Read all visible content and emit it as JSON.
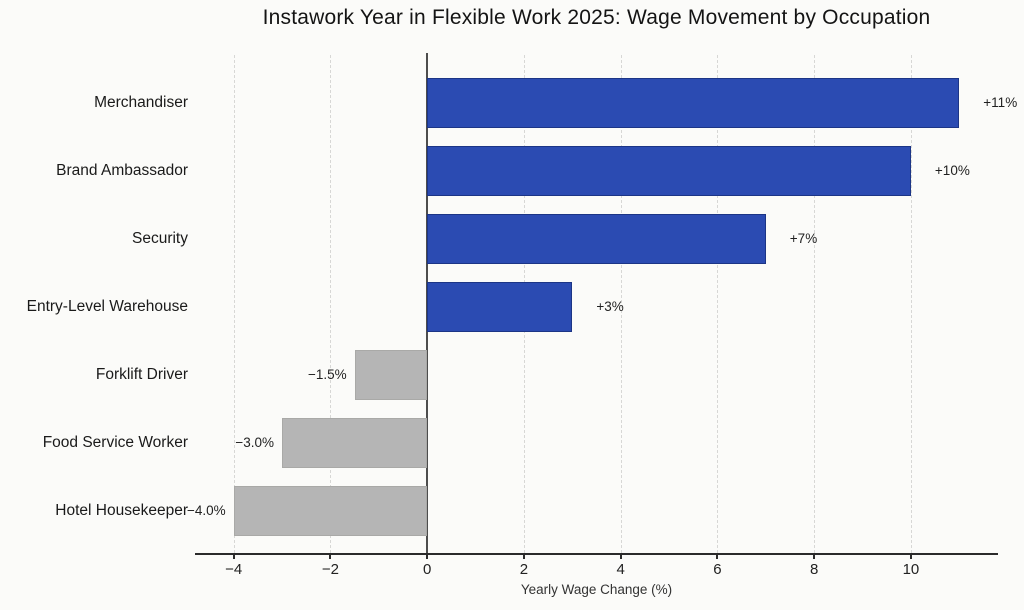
{
  "chart_data": {
    "type": "bar",
    "orientation": "horizontal",
    "title": "Instawork Year in Flexible Work 2025: Wage Movement by Occupation",
    "xlabel": "Yearly Wage Change (%)",
    "categories": [
      "Merchandiser",
      "Brand Ambassador",
      "Security",
      "Entry-Level Warehouse",
      "Forklift Driver",
      "Food Service Worker",
      "Hotel Housekeeper"
    ],
    "values": [
      11,
      10,
      7,
      3,
      -1.5,
      -3,
      -4
    ],
    "bar_labels": [
      "+11%",
      "+10%",
      "+7%",
      "+3%",
      "−1.5%",
      "−3.0%",
      "−4.0%"
    ],
    "xticks": [
      -4,
      -2,
      0,
      2,
      4,
      6,
      8,
      10
    ],
    "xtick_labels": [
      "−4",
      "−2",
      "0",
      "2",
      "4",
      "6",
      "8",
      "10"
    ],
    "xlim": [
      -4.8,
      11.8
    ],
    "grid": "vertical-dashed",
    "legend": "none",
    "positive_color": "#2b4bb2",
    "positive_border_color": "#1c3586",
    "negative_color": "#b5b5b5",
    "background_color": "#fbfbf9"
  }
}
